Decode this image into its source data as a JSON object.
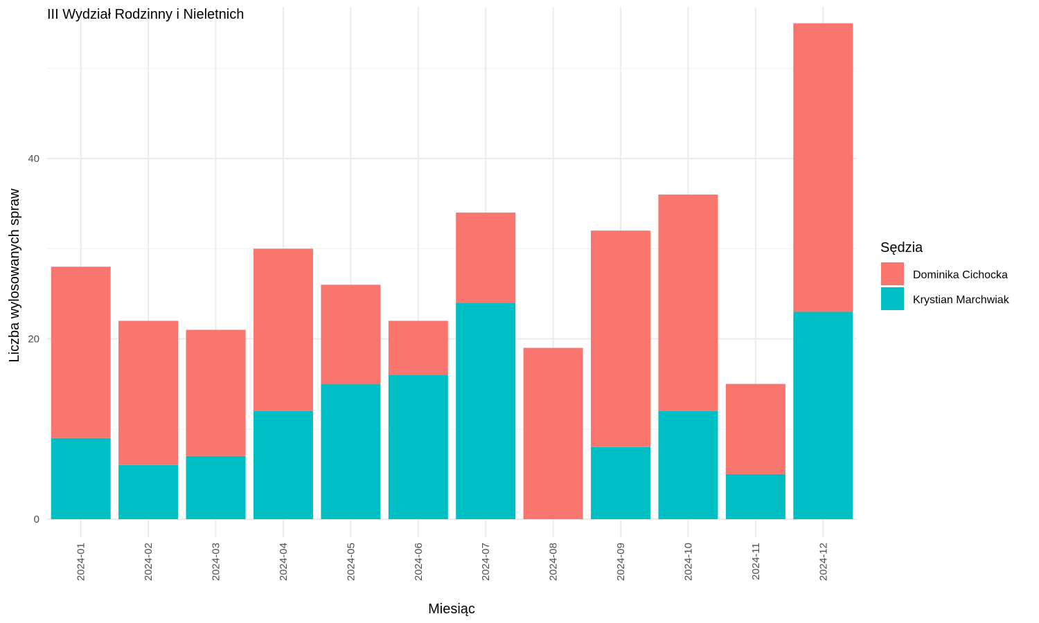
{
  "chart_data": {
    "type": "bar",
    "stacked": true,
    "title": "III Wydział Rodzinny i Nieletnich",
    "xlabel": "Miesiąc",
    "ylabel": "Liczba wylosowanych spraw",
    "ylim": [
      0,
      56
    ],
    "yticks": [
      "0",
      "20",
      "40"
    ],
    "grid": true,
    "legend_position": "right",
    "legend_title": "Sędzia",
    "categories": [
      "2024-01",
      "2024-02",
      "2024-03",
      "2024-04",
      "2024-05",
      "2024-06",
      "2024-07",
      "2024-08",
      "2024-09",
      "2024-10",
      "2024-11",
      "2024-12"
    ],
    "series": [
      {
        "name": "Dominika Cichocka",
        "color": "#F8766D",
        "values": [
          19,
          16,
          14,
          18,
          11,
          6,
          10,
          19,
          24,
          24,
          10,
          32
        ]
      },
      {
        "name": "Krystian Marchwiak",
        "color": "#00BFC4",
        "values": [
          9,
          6,
          7,
          12,
          15,
          16,
          24,
          0,
          8,
          12,
          5,
          23
        ]
      }
    ]
  }
}
